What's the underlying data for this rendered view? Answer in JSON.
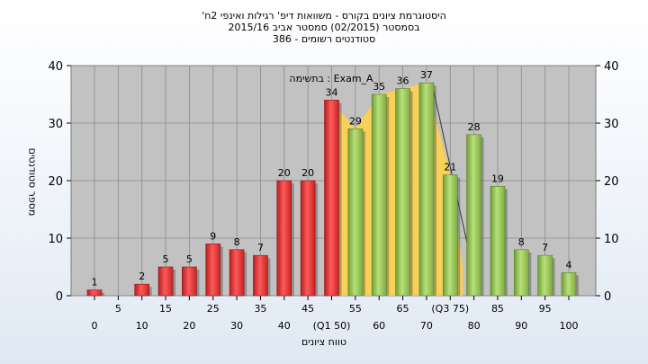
{
  "chart_data": {
    "type": "bar",
    "title_lines": [
      "'היסטוגרמת ציונים בקורס - משוואות דיפ' רגילות ואינפי 2ח",
      "בסמסטר  (02/2015)  סמסטר אביב 2015/16",
      "סטודנטים רשומים - 386"
    ],
    "ylabel": "מספר סטודנטים",
    "xlabel": "טווח ציונים",
    "ylim": [
      0,
      40
    ],
    "yticks": [
      0,
      10,
      20,
      30,
      40
    ],
    "annotation": "בתשימה : Exam_A",
    "categories": [
      "0",
      "5",
      "10",
      "15",
      "20",
      "25",
      "30",
      "35",
      "40",
      "45",
      "(Q1 50)",
      "55",
      "60",
      "65",
      "70",
      "(Q3 75)",
      "80",
      "85",
      "90",
      "95",
      "100"
    ],
    "values": [
      1,
      0,
      2,
      5,
      5,
      9,
      8,
      7,
      20,
      20,
      34,
      29,
      35,
      36,
      37,
      21,
      28,
      19,
      8,
      7,
      4
    ],
    "data_labels": [
      "1",
      "",
      "2",
      "5",
      "5",
      "9",
      "8",
      "7",
      "20",
      "20",
      "34",
      "29",
      "35",
      "36",
      "37",
      "21",
      "28",
      "19",
      "8",
      "7",
      "4"
    ],
    "bar_colors": [
      "red",
      "red",
      "red",
      "red",
      "red",
      "red",
      "red",
      "red",
      "red",
      "red",
      "red",
      "green",
      "green",
      "green",
      "green",
      "green",
      "green",
      "green",
      "green",
      "green",
      "green"
    ],
    "colors": {
      "red": "#d93232",
      "green": "#8fbf4f",
      "iqr_fill": "#ffd24d",
      "plot_bg": "#c2c2c2",
      "grid": "#8a8a8a"
    },
    "grid": true
  }
}
